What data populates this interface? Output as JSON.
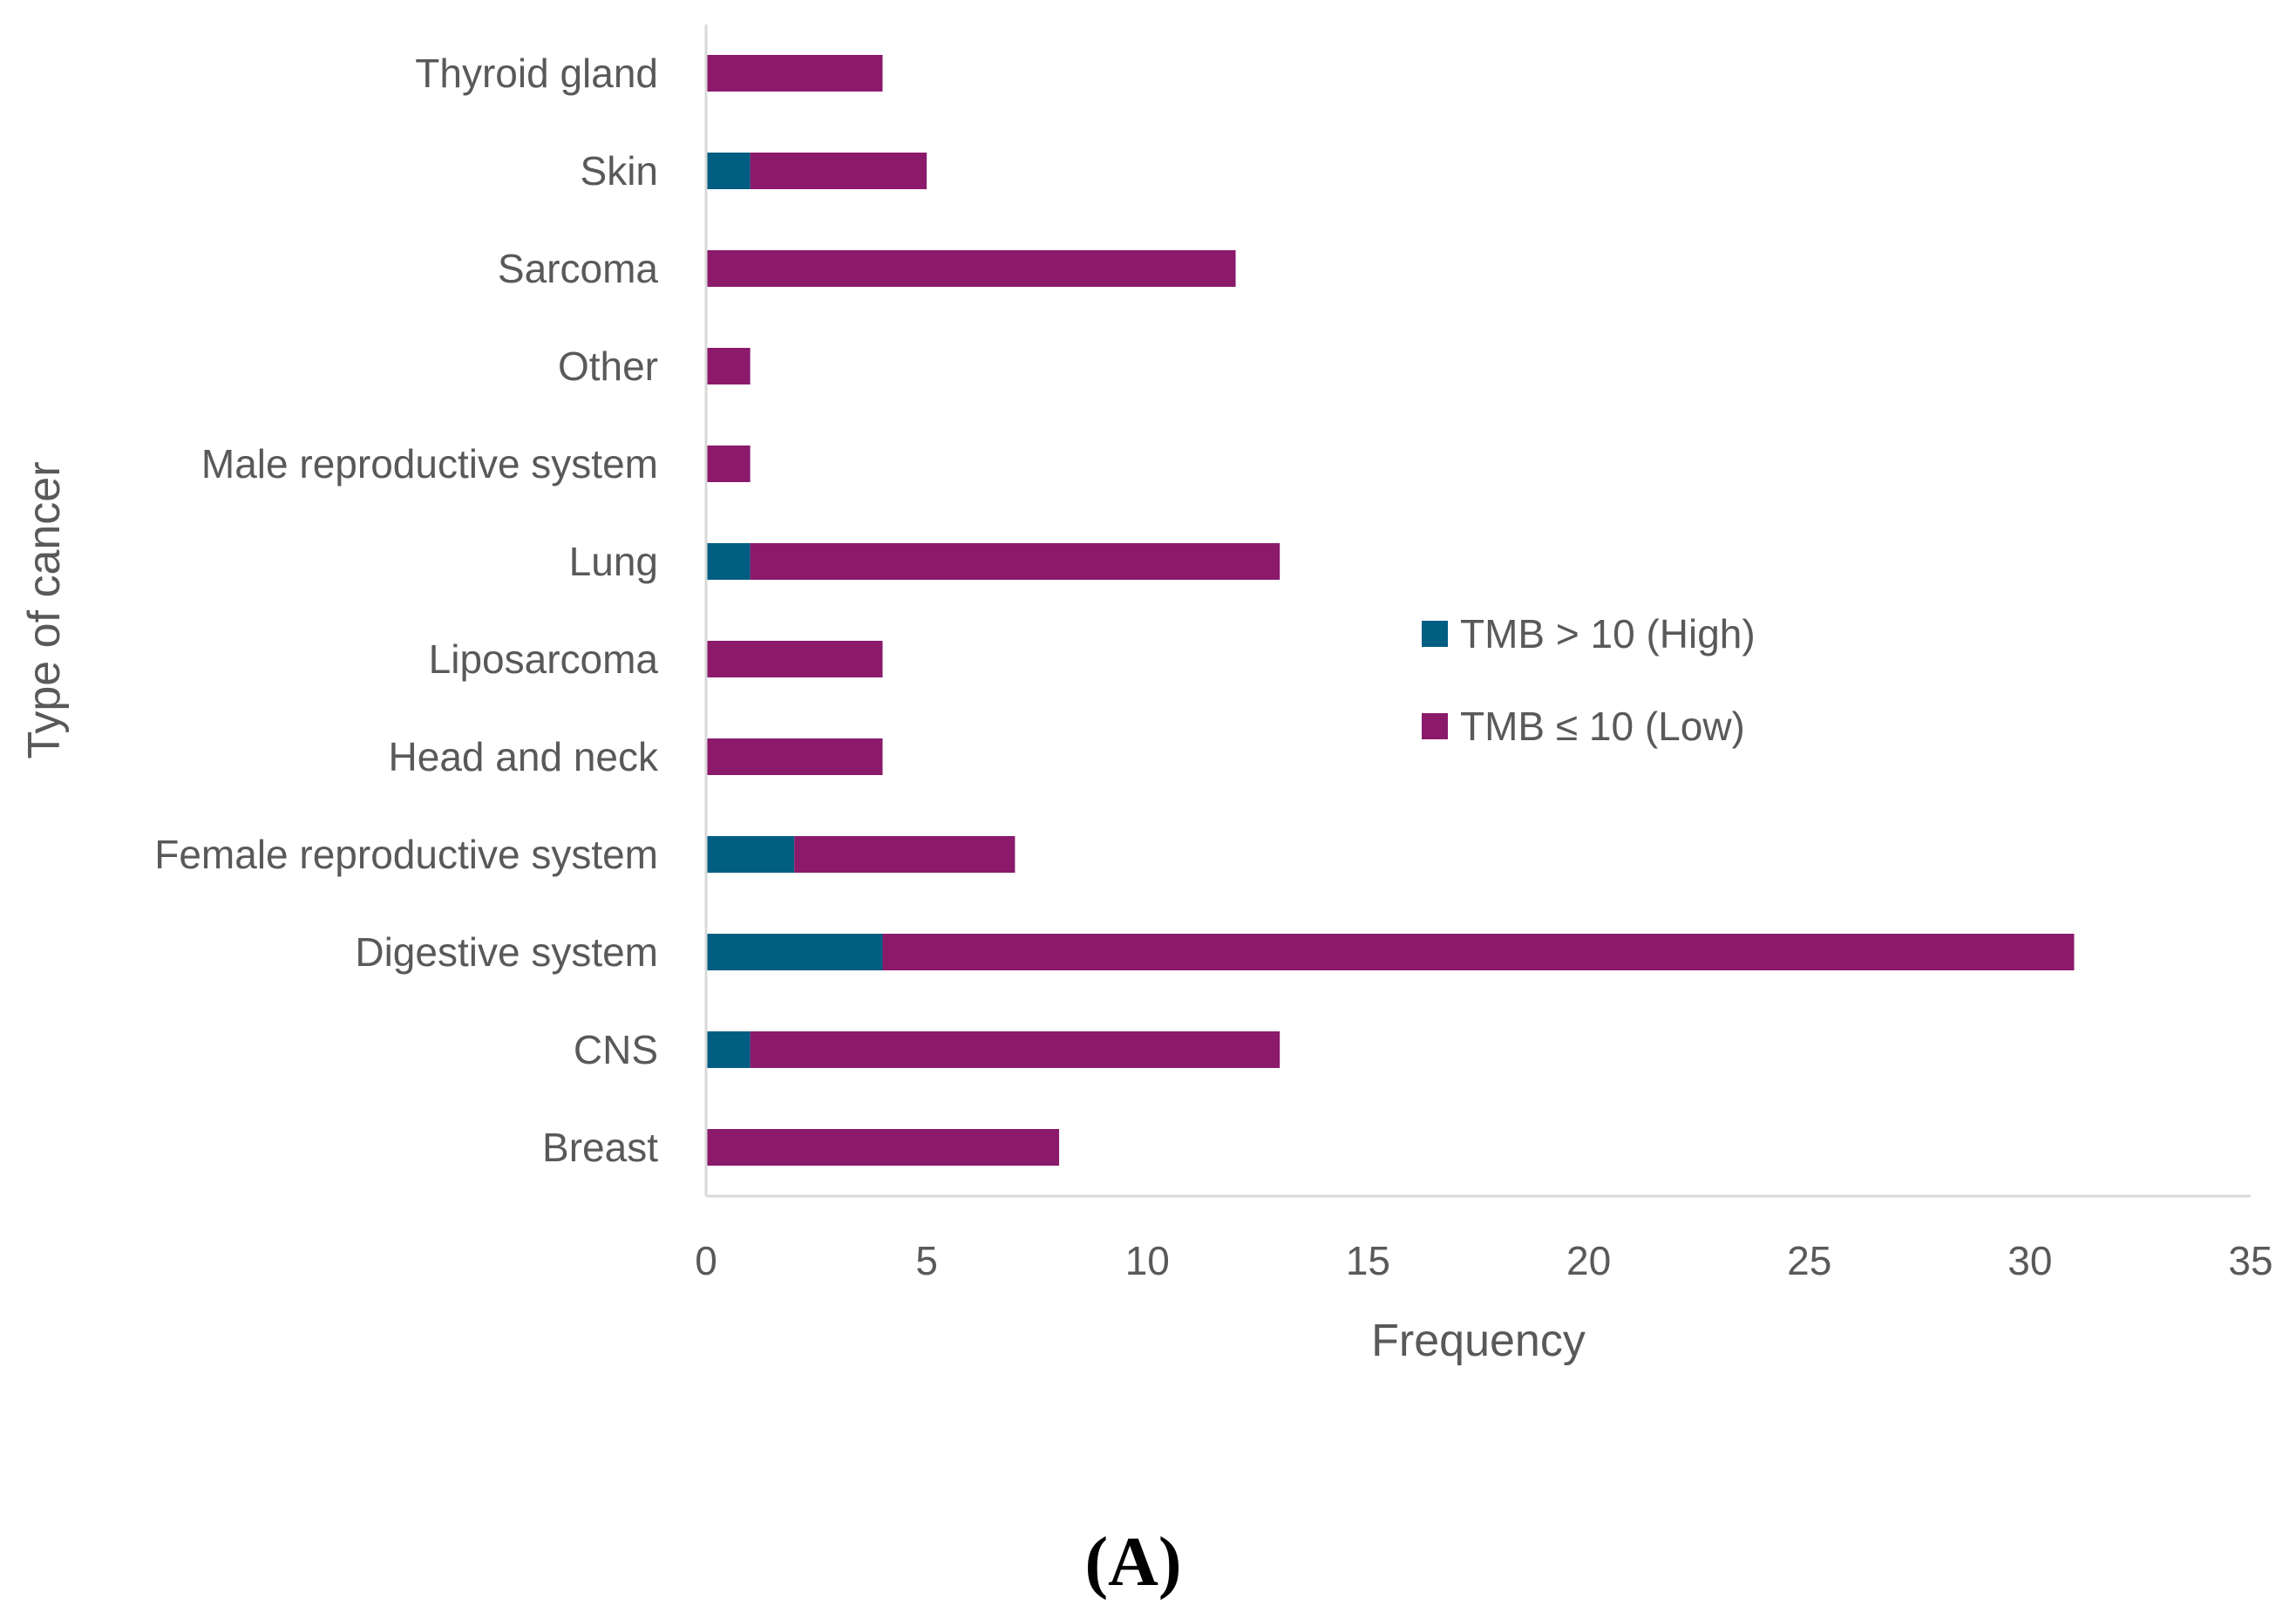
{
  "chart_data": {
    "type": "bar",
    "orientation": "horizontal",
    "stacked": true,
    "categories": [
      "Thyroid gland",
      "Skin",
      "Sarcoma",
      "Other",
      "Male reproductive system",
      "Lung",
      "Liposarcoma",
      "Head and neck",
      "Female reproductive system",
      "Digestive system",
      "CNS",
      "Breast"
    ],
    "series": [
      {
        "name": "TMB > 10 (High)",
        "color": "#005e82",
        "values": [
          0,
          1,
          0,
          0,
          0,
          1,
          0,
          0,
          2,
          4,
          1,
          0
        ]
      },
      {
        "name": "TMB ≤ 10 (Low)",
        "color": "#8b1a6b",
        "values": [
          4,
          4,
          12,
          1,
          1,
          12,
          4,
          4,
          5,
          27,
          12,
          8
        ]
      }
    ],
    "xlabel": "Frequency",
    "ylabel": "Type of cancer",
    "xlim": [
      0,
      35
    ],
    "xticks": [
      "0",
      "5",
      "10",
      "15",
      "20",
      "25",
      "30",
      "35"
    ],
    "legend_position": "right-center",
    "grid": false
  },
  "panel_label": "(A)",
  "colors": {
    "axis": "#d9d9d9",
    "text": "#595959"
  }
}
